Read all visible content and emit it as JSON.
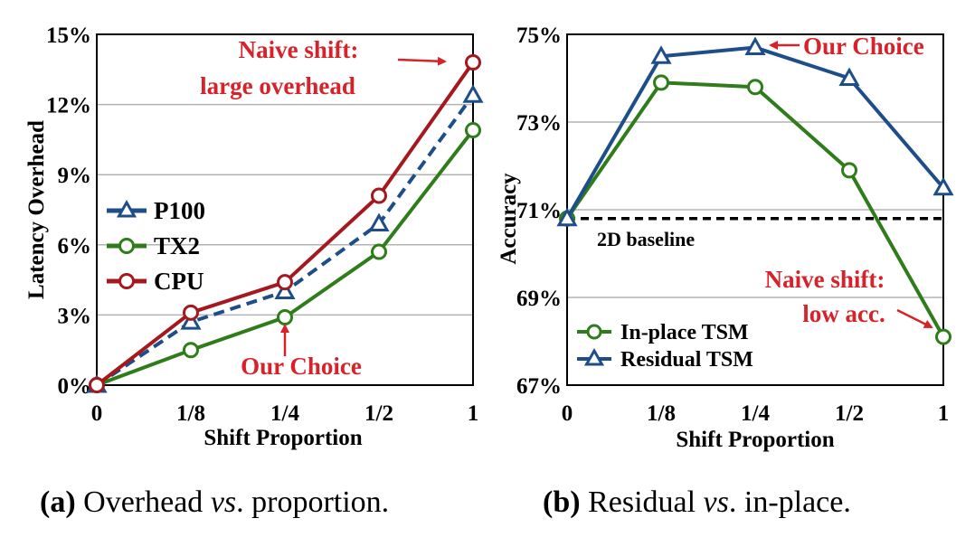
{
  "chart_data": [
    {
      "type": "line",
      "categories": [
        "0",
        "1/8",
        "1/4",
        "1/2",
        "1"
      ],
      "xlabel": "Shift Proportion",
      "ylabel": "Latency Overhead",
      "ylim": [
        0,
        15
      ],
      "yticks": [
        0,
        3,
        6,
        9,
        12,
        15
      ],
      "ytick_labels": [
        "0%",
        "3%",
        "6%",
        "9%",
        "12%",
        "15%"
      ],
      "grid": "horizontal",
      "legend_placement": "middle-left",
      "series": [
        {
          "name": "P100",
          "values": [
            0,
            2.7,
            4.0,
            6.9,
            12.4
          ],
          "color": "#1d4e89",
          "marker": "triangle",
          "dash": true
        },
        {
          "name": "TX2",
          "values": [
            0,
            1.5,
            2.9,
            5.7,
            10.9
          ],
          "color": "#2e7d1a",
          "marker": "circle",
          "dash": false
        },
        {
          "name": "CPU",
          "values": [
            0,
            3.1,
            4.4,
            8.1,
            13.8
          ],
          "color": "#a3191e",
          "marker": "circle",
          "dash": false
        }
      ],
      "annotations": {
        "naive_line1": "Naive shift:",
        "naive_line2": "large overhead",
        "choice": "Our Choice"
      },
      "caption": {
        "label": "(a)",
        "pre": " Overhead ",
        "vs": "vs",
        "post": ". proportion."
      }
    },
    {
      "type": "line",
      "categories": [
        "0",
        "1/8",
        "1/4",
        "1/2",
        "1"
      ],
      "xlabel": "Shift Proportion",
      "ylabel": "Accuracy",
      "ylim": [
        67,
        75
      ],
      "yticks": [
        67,
        69,
        71,
        73,
        75
      ],
      "ytick_labels": [
        "67%",
        "69%",
        "71%",
        "73%",
        "75%"
      ],
      "grid": "horizontal",
      "legend_placement": "bottom-left",
      "baseline": {
        "value": 70.8,
        "label": "2D baseline"
      },
      "series": [
        {
          "name": "In-place TSM",
          "values": [
            70.8,
            73.9,
            73.8,
            71.9,
            68.1
          ],
          "color": "#2e7d1a",
          "marker": "circle"
        },
        {
          "name": "Residual TSM",
          "values": [
            70.8,
            74.5,
            74.7,
            74.0,
            71.5
          ],
          "color": "#1d4e89",
          "marker": "triangle"
        }
      ],
      "annotations": {
        "choice": "Our Choice",
        "naive_line1": "Naive shift:",
        "naive_line2": "low acc."
      },
      "caption": {
        "label": "(b)",
        "pre": " Residual ",
        "vs": "vs",
        "post": ". in-place."
      }
    }
  ]
}
